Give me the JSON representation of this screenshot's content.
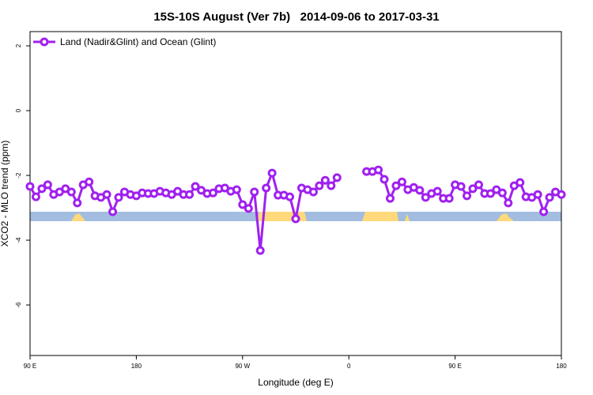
{
  "chart_data": {
    "type": "line",
    "title": "15S-10S August (Ver 7b)   2014-09-06 to 2017-03-31",
    "x_label": "Longitude (deg E)",
    "y_label": "XCO2 - MLO trend (ppm)",
    "xlim": [
      90,
      540
    ],
    "xticks": [
      {
        "value": 90,
        "label": "90 E"
      },
      180,
      {
        "value": 270,
        "label": "90 W"
      },
      {
        "value": 360,
        "label": "0"
      },
      {
        "value": 450,
        "label": "90 E"
      },
      {
        "value": 540,
        "label": "180"
      }
    ],
    "ylim": [
      -7.56,
      2.44
    ],
    "yticks": [
      2,
      0,
      -2,
      -4,
      -6
    ],
    "legend": "top-left",
    "x": [
      90,
      95,
      100,
      105,
      110,
      115,
      120,
      125,
      130,
      135,
      140,
      145,
      150,
      155,
      160,
      165,
      170,
      175,
      180,
      185,
      190,
      195,
      200,
      205,
      210,
      215,
      220,
      225,
      230,
      235,
      240,
      245,
      250,
      255,
      260,
      265,
      270,
      275,
      280,
      285,
      290,
      295,
      300,
      305,
      310,
      315,
      320,
      325,
      330,
      335,
      340,
      345,
      350,
      355,
      360,
      365,
      370,
      375,
      380,
      385,
      390,
      395,
      400,
      405,
      410,
      415,
      420,
      425,
      430,
      435,
      440,
      445,
      450,
      455,
      460,
      465,
      470,
      475,
      480,
      485,
      490,
      495,
      500,
      505,
      510,
      515,
      520,
      525,
      530,
      535,
      540
    ],
    "series": [
      {
        "name": "Land (Nadir&Glint) and Ocean (Glint)",
        "color": "#a020f0",
        "values": [
          -2.34,
          -2.66,
          -2.41,
          -2.29,
          -2.59,
          -2.51,
          -2.41,
          -2.51,
          -2.85,
          -2.29,
          -2.2,
          -2.63,
          -2.68,
          -2.59,
          -3.12,
          -2.68,
          -2.51,
          -2.59,
          -2.63,
          -2.54,
          -2.56,
          -2.56,
          -2.49,
          -2.54,
          -2.59,
          -2.49,
          -2.59,
          -2.59,
          -2.34,
          -2.46,
          -2.56,
          -2.54,
          -2.41,
          -2.39,
          -2.49,
          -2.44,
          -2.9,
          -3.02,
          -2.51,
          -4.32,
          -2.39,
          -1.93,
          -2.61,
          -2.61,
          -2.66,
          -3.34,
          -2.39,
          -2.44,
          -2.51,
          -2.32,
          -2.15,
          -2.32,
          -2.07,
          null,
          null,
          null,
          null,
          -1.88,
          -1.88,
          -1.83,
          -2.12,
          -2.71,
          -2.32,
          -2.2,
          -2.44,
          -2.37,
          -2.46,
          -2.68,
          -2.56,
          -2.49,
          -2.71,
          -2.71,
          -2.29,
          -2.34,
          -2.63,
          -2.41,
          -2.29,
          -2.56,
          -2.56,
          -2.44,
          -2.54,
          -2.85,
          -2.32,
          -2.22,
          -2.66,
          -2.68,
          -2.59,
          -3.12,
          -2.68,
          -2.51,
          -2.59
        ]
      }
    ]
  }
}
